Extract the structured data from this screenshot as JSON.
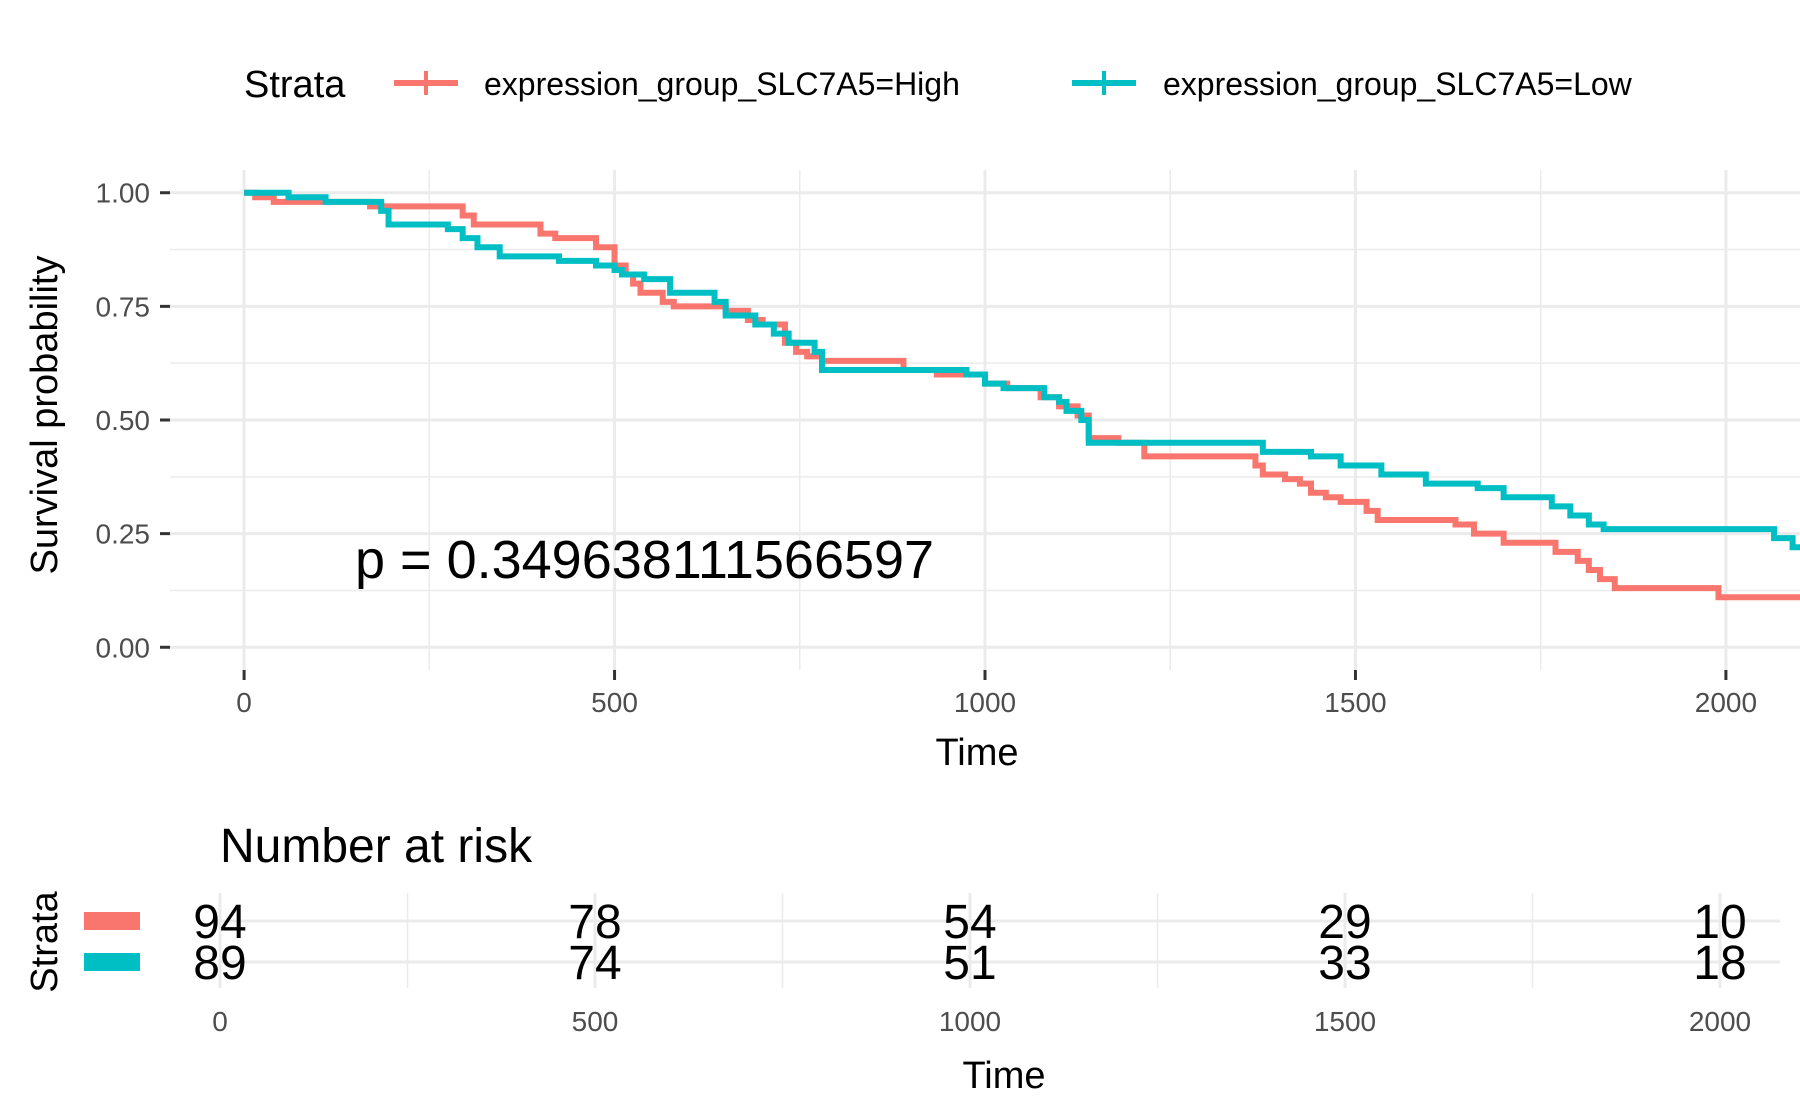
{
  "chart_data": [
    {
      "type": "line",
      "step": true,
      "xlabel": "Time",
      "ylabel": "Survival probability",
      "xlim": [
        -100,
        2100
      ],
      "ylim": [
        -0.05,
        1.05
      ],
      "x_ticks": [
        0,
        500,
        1000,
        1500,
        2000
      ],
      "y_ticks": [
        0.0,
        0.25,
        0.5,
        0.75,
        1.0
      ],
      "y_tick_labels": [
        "0.00",
        "0.25",
        "0.50",
        "0.75",
        "1.00"
      ],
      "grid": true,
      "legend": {
        "title": "Strata",
        "placement": "top",
        "entries": [
          "expression_group_SLC7A5=High",
          "expression_group_SLC7A5=Low"
        ]
      },
      "annotation": "p = 0.349638111566597",
      "series": [
        {
          "name": "expression_group_SLC7A5=High",
          "color": "#F8766D",
          "x": [
            0,
            15,
            40,
            90,
            170,
            280,
            295,
            310,
            380,
            400,
            420,
            455,
            475,
            500,
            515,
            525,
            535,
            550,
            565,
            580,
            650,
            680,
            700,
            730,
            745,
            760,
            780,
            890,
            935,
            1000,
            1030,
            1075,
            1100,
            1125,
            1140,
            1180,
            1215,
            1365,
            1375,
            1405,
            1425,
            1440,
            1460,
            1480,
            1515,
            1530,
            1635,
            1660,
            1700,
            1770,
            1800,
            1815,
            1830,
            1850,
            1990,
            2100
          ],
          "y": [
            1.0,
            0.99,
            0.98,
            0.98,
            0.97,
            0.97,
            0.95,
            0.93,
            0.93,
            0.91,
            0.9,
            0.9,
            0.88,
            0.84,
            0.82,
            0.8,
            0.78,
            0.78,
            0.76,
            0.75,
            0.74,
            0.72,
            0.71,
            0.67,
            0.65,
            0.64,
            0.63,
            0.61,
            0.6,
            0.58,
            0.57,
            0.55,
            0.53,
            0.51,
            0.46,
            0.45,
            0.42,
            0.4,
            0.38,
            0.37,
            0.36,
            0.34,
            0.33,
            0.32,
            0.3,
            0.28,
            0.27,
            0.25,
            0.23,
            0.21,
            0.19,
            0.17,
            0.15,
            0.13,
            0.11,
            0.11
          ]
        },
        {
          "name": "expression_group_SLC7A5=Low",
          "color": "#00BFC4",
          "x": [
            0,
            60,
            110,
            185,
            195,
            275,
            295,
            315,
            345,
            425,
            475,
            500,
            510,
            540,
            575,
            635,
            650,
            690,
            715,
            735,
            770,
            780,
            905,
            975,
            1000,
            1025,
            1080,
            1100,
            1110,
            1130,
            1140,
            1350,
            1375,
            1440,
            1480,
            1535,
            1595,
            1665,
            1700,
            1765,
            1790,
            1815,
            1835,
            2065,
            2090,
            2100
          ],
          "y": [
            1.0,
            0.99,
            0.98,
            0.96,
            0.93,
            0.92,
            0.9,
            0.88,
            0.86,
            0.85,
            0.84,
            0.83,
            0.82,
            0.81,
            0.78,
            0.76,
            0.73,
            0.71,
            0.69,
            0.67,
            0.65,
            0.61,
            0.61,
            0.6,
            0.58,
            0.57,
            0.55,
            0.54,
            0.52,
            0.5,
            0.45,
            0.45,
            0.43,
            0.42,
            0.4,
            0.38,
            0.36,
            0.35,
            0.33,
            0.31,
            0.29,
            0.27,
            0.26,
            0.24,
            0.22,
            0.22
          ]
        }
      ]
    },
    {
      "type": "table",
      "title": "Number at risk",
      "ylabel": "Strata",
      "xlabel": "Time",
      "x": [
        0,
        500,
        1000,
        1500,
        2000
      ],
      "x_tick_labels": [
        "0",
        "500",
        "1000",
        "1500",
        "2000"
      ],
      "rows": [
        {
          "name": "expression_group_SLC7A5=High",
          "color": "#F8766D",
          "values": [
            "94",
            "78",
            "54",
            "29",
            "10"
          ]
        },
        {
          "name": "expression_group_SLC7A5=Low",
          "color": "#00BFC4",
          "values": [
            "89",
            "74",
            "51",
            "33",
            "18"
          ]
        }
      ]
    }
  ]
}
